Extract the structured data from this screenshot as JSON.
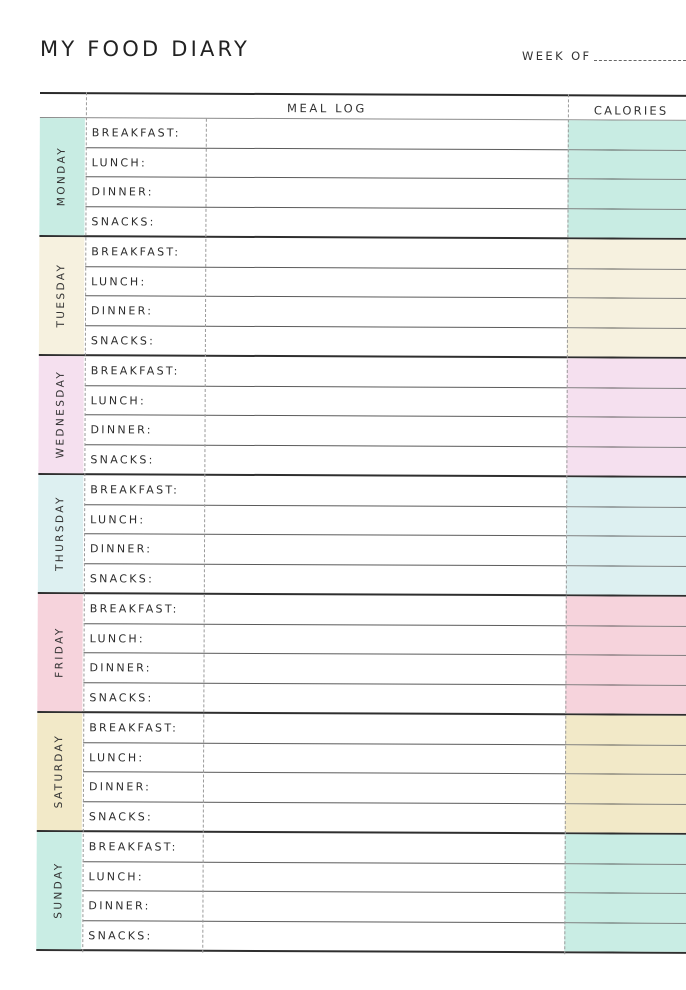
{
  "header": {
    "title": "MY FOOD DIARY",
    "week_of_label": "WEEK OF",
    "week_of_value": ""
  },
  "table": {
    "columns": [
      "",
      "MEAL LOG",
      "CALORIES"
    ],
    "meal_labels": [
      "BREAKFAST:",
      "LUNCH:",
      "DINNER:",
      "SNACKS:"
    ],
    "days": [
      {
        "name": "MONDAY",
        "color": "#c8ece3",
        "meals": {
          "breakfast": "",
          "lunch": "",
          "dinner": "",
          "snacks": ""
        },
        "calories": {
          "breakfast": "",
          "lunch": "",
          "dinner": "",
          "snacks": ""
        }
      },
      {
        "name": "TUESDAY",
        "color": "#f6f1df",
        "meals": {
          "breakfast": "",
          "lunch": "",
          "dinner": "",
          "snacks": ""
        },
        "calories": {
          "breakfast": "",
          "lunch": "",
          "dinner": "",
          "snacks": ""
        }
      },
      {
        "name": "WEDNESDAY",
        "color": "#f5e0ef",
        "meals": {
          "breakfast": "",
          "lunch": "",
          "dinner": "",
          "snacks": ""
        },
        "calories": {
          "breakfast": "",
          "lunch": "",
          "dinner": "",
          "snacks": ""
        }
      },
      {
        "name": "THURSDAY",
        "color": "#ddf0f1",
        "meals": {
          "breakfast": "",
          "lunch": "",
          "dinner": "",
          "snacks": ""
        },
        "calories": {
          "breakfast": "",
          "lunch": "",
          "dinner": "",
          "snacks": ""
        }
      },
      {
        "name": "FRIDAY",
        "color": "#f6d3dc",
        "meals": {
          "breakfast": "",
          "lunch": "",
          "dinner": "",
          "snacks": ""
        },
        "calories": {
          "breakfast": "",
          "lunch": "",
          "dinner": "",
          "snacks": ""
        }
      },
      {
        "name": "SATURDAY",
        "color": "#f2e9c8",
        "meals": {
          "breakfast": "",
          "lunch": "",
          "dinner": "",
          "snacks": ""
        },
        "calories": {
          "breakfast": "",
          "lunch": "",
          "dinner": "",
          "snacks": ""
        }
      },
      {
        "name": "SUNDAY",
        "color": "#c9ede4",
        "meals": {
          "breakfast": "",
          "lunch": "",
          "dinner": "",
          "snacks": ""
        },
        "calories": {
          "breakfast": "",
          "lunch": "",
          "dinner": "",
          "snacks": ""
        }
      }
    ]
  }
}
